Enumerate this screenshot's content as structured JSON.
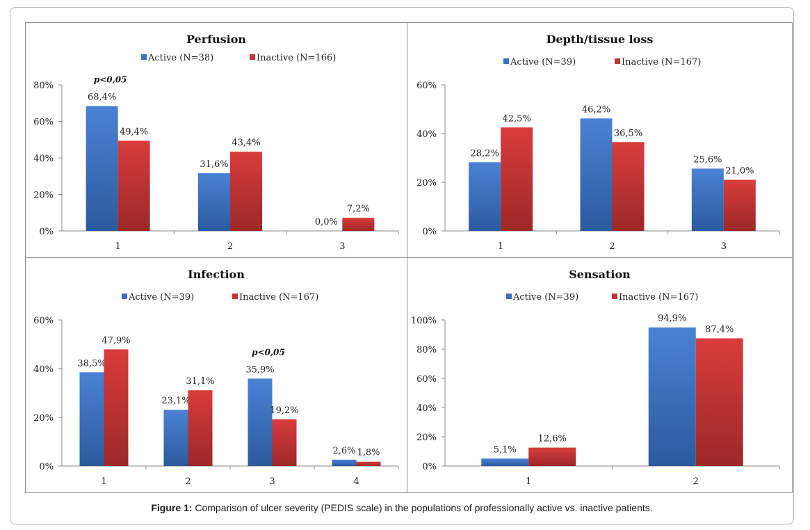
{
  "caption": {
    "label": "Figure 1:",
    "text": " Comparison of ulcer severity (PEDIS scale) in the populations of professionally active vs. inactive patients."
  },
  "colors": {
    "active": "#3b6fbf",
    "inactive": "#c93232"
  },
  "chart_data": [
    {
      "type": "bar",
      "title": "Perfusion",
      "categories": [
        "1",
        "2",
        "3"
      ],
      "series": [
        {
          "name": "Active (N=38)",
          "values": [
            68.4,
            31.6,
            0.0
          ],
          "labels": [
            "68,4%",
            "31,6%",
            "0,0%"
          ]
        },
        {
          "name": "Inactive (N=166)",
          "values": [
            49.4,
            43.4,
            7.2
          ],
          "labels": [
            "49,4%",
            "43,4%",
            "7,2%"
          ]
        }
      ],
      "ylim": [
        0,
        80
      ],
      "yticks": [
        "0%",
        "20%",
        "40%",
        "60%",
        "80%"
      ],
      "legend": "top",
      "annotation": {
        "text": "p<0,05",
        "category": 0
      }
    },
    {
      "type": "bar",
      "title": "Depth/tissue loss",
      "categories": [
        "1",
        "2",
        "3"
      ],
      "series": [
        {
          "name": "Active (N=39)",
          "values": [
            28.2,
            46.2,
            25.6
          ],
          "labels": [
            "28,2%",
            "46,2%",
            "25,6%"
          ]
        },
        {
          "name": "Inactive (N=167)",
          "values": [
            42.5,
            36.5,
            21.0
          ],
          "labels": [
            "42,5%",
            "36,5%",
            "21,0%"
          ]
        }
      ],
      "ylim": [
        0,
        60
      ],
      "yticks": [
        "0%",
        "20%",
        "40%",
        "60%"
      ],
      "legend": "top"
    },
    {
      "type": "bar",
      "title": "Infection",
      "categories": [
        "1",
        "2",
        "3",
        "4"
      ],
      "series": [
        {
          "name": "Active (N=39)",
          "values": [
            38.5,
            23.1,
            35.9,
            2.6
          ],
          "labels": [
            "38,5%",
            "23,1%",
            "35,9%",
            "2,6%"
          ]
        },
        {
          "name": "Inactive (N=167)",
          "values": [
            47.9,
            31.1,
            19.2,
            1.8
          ],
          "labels": [
            "47,9%",
            "31,1%",
            "19,2%",
            "1,8%"
          ]
        }
      ],
      "ylim": [
        0,
        60
      ],
      "yticks": [
        "0%",
        "20%",
        "40%",
        "60%"
      ],
      "legend": "top",
      "annotation": {
        "text": "p<0,05",
        "category": 2
      }
    },
    {
      "type": "bar",
      "title": "Sensation",
      "categories": [
        "1",
        "2"
      ],
      "series": [
        {
          "name": "Active (N=39)",
          "values": [
            5.1,
            94.9
          ],
          "labels": [
            "5,1%",
            "94,9%"
          ]
        },
        {
          "name": "Inactive (N=167)",
          "values": [
            12.6,
            87.4
          ],
          "labels": [
            "12,6%",
            "87,4%"
          ]
        }
      ],
      "ylim": [
        0,
        100
      ],
      "yticks": [
        "0%",
        "20%",
        "40%",
        "60%",
        "80%",
        "100%"
      ],
      "legend": "top"
    }
  ]
}
